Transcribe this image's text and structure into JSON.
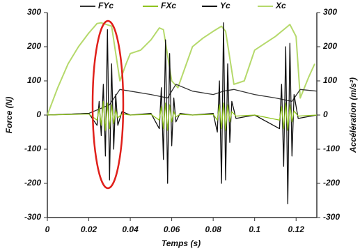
{
  "chart_data": {
    "type": "line",
    "xlabel": "Temps (s)",
    "ylabel": "Force (N)",
    "y2label": "Accélération (m/s²)",
    "xlim": [
      0,
      0.13
    ],
    "xticks": [
      0,
      0.02,
      0.04,
      0.06,
      0.08,
      0.1,
      0.12
    ],
    "ylim": [
      -300,
      300
    ],
    "yticks": [
      -300,
      -200,
      -100,
      0,
      100,
      200,
      300
    ],
    "y2lim": [
      -300,
      300
    ],
    "y2ticks": [
      -300,
      -200,
      -100,
      0,
      100,
      200,
      300
    ],
    "grid": false,
    "legend": "top",
    "series": [
      {
        "name": "FYc",
        "color": "#333333",
        "axis": "y",
        "x": [
          0,
          0.02,
          0.03,
          0.035,
          0.04,
          0.05,
          0.058,
          0.062,
          0.07,
          0.08,
          0.085,
          0.09,
          0.1,
          0.11,
          0.118,
          0.122,
          0.13
        ],
        "values": [
          0,
          5,
          30,
          75,
          70,
          60,
          50,
          90,
          70,
          60,
          70,
          75,
          60,
          50,
          40,
          75,
          70
        ]
      },
      {
        "name": "FXc",
        "color": "#8fc31f",
        "axis": "y",
        "x": [
          0,
          0.02,
          0.024,
          0.025,
          0.026,
          0.027,
          0.028,
          0.029,
          0.03,
          0.031,
          0.032,
          0.033,
          0.034,
          0.036,
          0.04,
          0.05,
          0.054,
          0.055,
          0.056,
          0.057,
          0.058,
          0.059,
          0.06,
          0.061,
          0.062,
          0.064,
          0.07,
          0.08,
          0.082,
          0.083,
          0.084,
          0.085,
          0.086,
          0.087,
          0.088,
          0.089,
          0.091,
          0.1,
          0.112,
          0.113,
          0.114,
          0.115,
          0.116,
          0.117,
          0.118,
          0.119,
          0.121,
          0.13
        ],
        "values": [
          0,
          3,
          -15,
          20,
          -30,
          40,
          -45,
          35,
          -40,
          30,
          -25,
          15,
          -8,
          3,
          0,
          2,
          -15,
          25,
          -40,
          35,
          -45,
          30,
          -20,
          10,
          -5,
          2,
          0,
          2,
          -15,
          30,
          -40,
          35,
          -45,
          30,
          -20,
          10,
          -3,
          0,
          -15,
          25,
          -40,
          35,
          -45,
          30,
          -20,
          12,
          -3,
          0
        ]
      },
      {
        "name": "Yc",
        "color": "#111111",
        "axis": "y2",
        "x": [
          0,
          0.02,
          0.024,
          0.025,
          0.026,
          0.027,
          0.028,
          0.029,
          0.03,
          0.031,
          0.032,
          0.033,
          0.034,
          0.036,
          0.04,
          0.05,
          0.054,
          0.055,
          0.056,
          0.057,
          0.058,
          0.059,
          0.06,
          0.061,
          0.062,
          0.064,
          0.07,
          0.08,
          0.082,
          0.083,
          0.084,
          0.085,
          0.086,
          0.087,
          0.088,
          0.089,
          0.091,
          0.1,
          0.112,
          0.113,
          0.114,
          0.115,
          0.116,
          0.117,
          0.118,
          0.119,
          0.121,
          0.13
        ],
        "values": [
          0,
          5,
          -30,
          40,
          -60,
          90,
          -120,
          250,
          -190,
          150,
          -100,
          60,
          -30,
          10,
          0,
          5,
          -40,
          80,
          -130,
          220,
          -200,
          180,
          -90,
          50,
          -20,
          5,
          0,
          5,
          -50,
          100,
          -200,
          270,
          -190,
          150,
          -80,
          40,
          -10,
          0,
          -40,
          90,
          -150,
          200,
          -260,
          210,
          -120,
          60,
          -10,
          0
        ]
      },
      {
        "name": "Xc",
        "color": "#b5d96b",
        "axis": "y2",
        "x": [
          0,
          0.005,
          0.01,
          0.015,
          0.02,
          0.024,
          0.026,
          0.031,
          0.035,
          0.038,
          0.04,
          0.045,
          0.05,
          0.054,
          0.056,
          0.06,
          0.063,
          0.07,
          0.075,
          0.08,
          0.084,
          0.086,
          0.09,
          0.095,
          0.1,
          0.105,
          0.11,
          0.115,
          0.117,
          0.12,
          0.122,
          0.126,
          0.129
        ],
        "values": [
          0,
          80,
          150,
          200,
          240,
          268,
          270,
          260,
          100,
          150,
          180,
          190,
          220,
          255,
          250,
          100,
          80,
          200,
          225,
          245,
          260,
          245,
          90,
          100,
          190,
          210,
          230,
          255,
          265,
          230,
          50,
          110,
          150
        ]
      }
    ]
  }
}
